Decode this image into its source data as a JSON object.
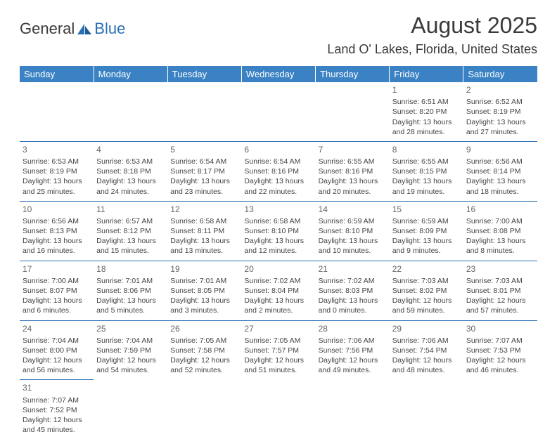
{
  "logo": {
    "word1": "General",
    "word2": "Blue"
  },
  "title": "August 2025",
  "subtitle": "Land O' Lakes, Florida, United States",
  "colors": {
    "header_bg": "#3a82c4",
    "header_fg": "#ffffff",
    "rule": "#2a6fb5",
    "text": "#444444",
    "title_color": "#3a3a3a"
  },
  "weekdays": [
    "Sunday",
    "Monday",
    "Tuesday",
    "Wednesday",
    "Thursday",
    "Friday",
    "Saturday"
  ],
  "weeks": [
    [
      null,
      null,
      null,
      null,
      null,
      {
        "n": "1",
        "sr": "Sunrise: 6:51 AM",
        "ss": "Sunset: 8:20 PM",
        "d1": "Daylight: 13 hours",
        "d2": "and 28 minutes."
      },
      {
        "n": "2",
        "sr": "Sunrise: 6:52 AM",
        "ss": "Sunset: 8:19 PM",
        "d1": "Daylight: 13 hours",
        "d2": "and 27 minutes."
      }
    ],
    [
      {
        "n": "3",
        "sr": "Sunrise: 6:53 AM",
        "ss": "Sunset: 8:19 PM",
        "d1": "Daylight: 13 hours",
        "d2": "and 25 minutes."
      },
      {
        "n": "4",
        "sr": "Sunrise: 6:53 AM",
        "ss": "Sunset: 8:18 PM",
        "d1": "Daylight: 13 hours",
        "d2": "and 24 minutes."
      },
      {
        "n": "5",
        "sr": "Sunrise: 6:54 AM",
        "ss": "Sunset: 8:17 PM",
        "d1": "Daylight: 13 hours",
        "d2": "and 23 minutes."
      },
      {
        "n": "6",
        "sr": "Sunrise: 6:54 AM",
        "ss": "Sunset: 8:16 PM",
        "d1": "Daylight: 13 hours",
        "d2": "and 22 minutes."
      },
      {
        "n": "7",
        "sr": "Sunrise: 6:55 AM",
        "ss": "Sunset: 8:16 PM",
        "d1": "Daylight: 13 hours",
        "d2": "and 20 minutes."
      },
      {
        "n": "8",
        "sr": "Sunrise: 6:55 AM",
        "ss": "Sunset: 8:15 PM",
        "d1": "Daylight: 13 hours",
        "d2": "and 19 minutes."
      },
      {
        "n": "9",
        "sr": "Sunrise: 6:56 AM",
        "ss": "Sunset: 8:14 PM",
        "d1": "Daylight: 13 hours",
        "d2": "and 18 minutes."
      }
    ],
    [
      {
        "n": "10",
        "sr": "Sunrise: 6:56 AM",
        "ss": "Sunset: 8:13 PM",
        "d1": "Daylight: 13 hours",
        "d2": "and 16 minutes."
      },
      {
        "n": "11",
        "sr": "Sunrise: 6:57 AM",
        "ss": "Sunset: 8:12 PM",
        "d1": "Daylight: 13 hours",
        "d2": "and 15 minutes."
      },
      {
        "n": "12",
        "sr": "Sunrise: 6:58 AM",
        "ss": "Sunset: 8:11 PM",
        "d1": "Daylight: 13 hours",
        "d2": "and 13 minutes."
      },
      {
        "n": "13",
        "sr": "Sunrise: 6:58 AM",
        "ss": "Sunset: 8:10 PM",
        "d1": "Daylight: 13 hours",
        "d2": "and 12 minutes."
      },
      {
        "n": "14",
        "sr": "Sunrise: 6:59 AM",
        "ss": "Sunset: 8:10 PM",
        "d1": "Daylight: 13 hours",
        "d2": "and 10 minutes."
      },
      {
        "n": "15",
        "sr": "Sunrise: 6:59 AM",
        "ss": "Sunset: 8:09 PM",
        "d1": "Daylight: 13 hours",
        "d2": "and 9 minutes."
      },
      {
        "n": "16",
        "sr": "Sunrise: 7:00 AM",
        "ss": "Sunset: 8:08 PM",
        "d1": "Daylight: 13 hours",
        "d2": "and 8 minutes."
      }
    ],
    [
      {
        "n": "17",
        "sr": "Sunrise: 7:00 AM",
        "ss": "Sunset: 8:07 PM",
        "d1": "Daylight: 13 hours",
        "d2": "and 6 minutes."
      },
      {
        "n": "18",
        "sr": "Sunrise: 7:01 AM",
        "ss": "Sunset: 8:06 PM",
        "d1": "Daylight: 13 hours",
        "d2": "and 5 minutes."
      },
      {
        "n": "19",
        "sr": "Sunrise: 7:01 AM",
        "ss": "Sunset: 8:05 PM",
        "d1": "Daylight: 13 hours",
        "d2": "and 3 minutes."
      },
      {
        "n": "20",
        "sr": "Sunrise: 7:02 AM",
        "ss": "Sunset: 8:04 PM",
        "d1": "Daylight: 13 hours",
        "d2": "and 2 minutes."
      },
      {
        "n": "21",
        "sr": "Sunrise: 7:02 AM",
        "ss": "Sunset: 8:03 PM",
        "d1": "Daylight: 13 hours",
        "d2": "and 0 minutes."
      },
      {
        "n": "22",
        "sr": "Sunrise: 7:03 AM",
        "ss": "Sunset: 8:02 PM",
        "d1": "Daylight: 12 hours",
        "d2": "and 59 minutes."
      },
      {
        "n": "23",
        "sr": "Sunrise: 7:03 AM",
        "ss": "Sunset: 8:01 PM",
        "d1": "Daylight: 12 hours",
        "d2": "and 57 minutes."
      }
    ],
    [
      {
        "n": "24",
        "sr": "Sunrise: 7:04 AM",
        "ss": "Sunset: 8:00 PM",
        "d1": "Daylight: 12 hours",
        "d2": "and 56 minutes."
      },
      {
        "n": "25",
        "sr": "Sunrise: 7:04 AM",
        "ss": "Sunset: 7:59 PM",
        "d1": "Daylight: 12 hours",
        "d2": "and 54 minutes."
      },
      {
        "n": "26",
        "sr": "Sunrise: 7:05 AM",
        "ss": "Sunset: 7:58 PM",
        "d1": "Daylight: 12 hours",
        "d2": "and 52 minutes."
      },
      {
        "n": "27",
        "sr": "Sunrise: 7:05 AM",
        "ss": "Sunset: 7:57 PM",
        "d1": "Daylight: 12 hours",
        "d2": "and 51 minutes."
      },
      {
        "n": "28",
        "sr": "Sunrise: 7:06 AM",
        "ss": "Sunset: 7:56 PM",
        "d1": "Daylight: 12 hours",
        "d2": "and 49 minutes."
      },
      {
        "n": "29",
        "sr": "Sunrise: 7:06 AM",
        "ss": "Sunset: 7:54 PM",
        "d1": "Daylight: 12 hours",
        "d2": "and 48 minutes."
      },
      {
        "n": "30",
        "sr": "Sunrise: 7:07 AM",
        "ss": "Sunset: 7:53 PM",
        "d1": "Daylight: 12 hours",
        "d2": "and 46 minutes."
      }
    ],
    [
      {
        "n": "31",
        "sr": "Sunrise: 7:07 AM",
        "ss": "Sunset: 7:52 PM",
        "d1": "Daylight: 12 hours",
        "d2": "and 45 minutes."
      },
      null,
      null,
      null,
      null,
      null,
      null
    ]
  ]
}
